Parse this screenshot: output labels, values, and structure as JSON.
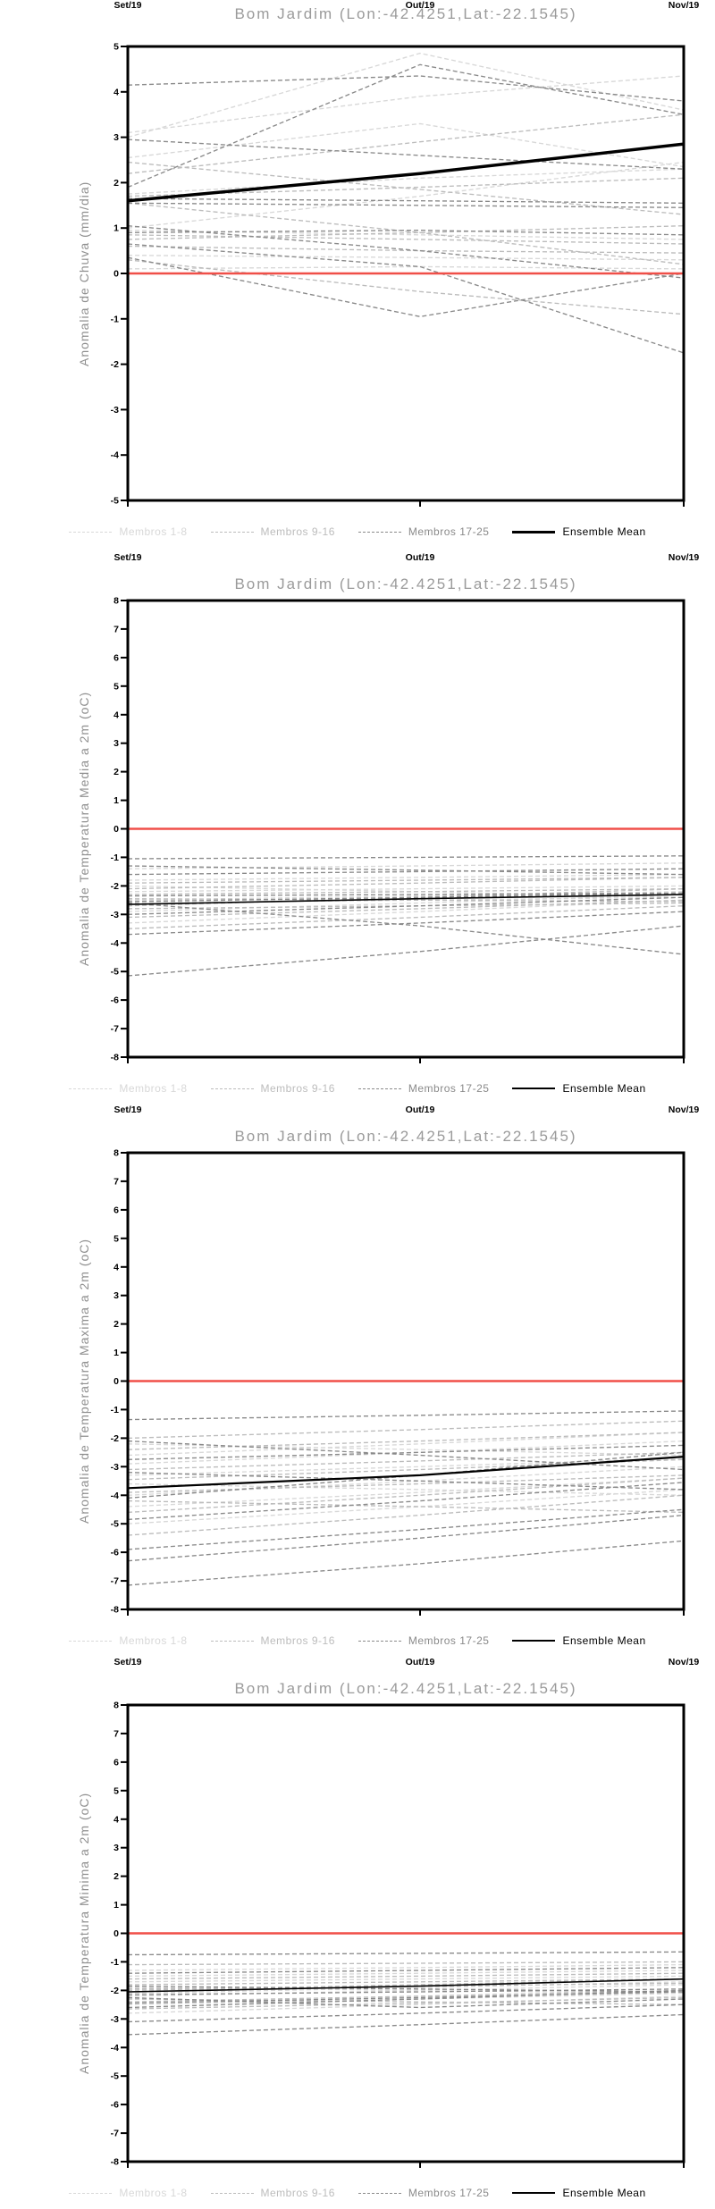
{
  "page": {
    "background": "#ffffff",
    "accent_zero_line_color": "#f04f48",
    "axis_color": "#000000",
    "title_color": "#9a9a9a"
  },
  "chart_data": [
    {
      "type": "line",
      "title": "Bom Jardim (Lon:-42.4251,Lat:-22.1545)",
      "ylabel": "Anomalia de Chuva (mm/dia)",
      "x_labels": [
        "Set/19",
        "Out/19",
        "Nov/19"
      ],
      "ylim": [
        -5,
        5
      ],
      "ytick_step": 1,
      "grid": false,
      "legend_position": "bottom",
      "zero_line_color": "#f04f48",
      "series_groups": [
        {
          "name": "Membros 1-8",
          "color": "#d8d8d8",
          "style": "dashed",
          "members": [
            [
              3.0,
              4.85,
              3.6
            ],
            [
              2.55,
              3.3,
              2.35
            ],
            [
              1.75,
              2.1,
              2.3
            ],
            [
              0.95,
              0.85,
              0.75
            ],
            [
              0.4,
              0.35,
              0.3
            ],
            [
              0.1,
              0.15,
              0.1
            ],
            [
              1.0,
              1.7,
              2.45
            ],
            [
              3.1,
              3.9,
              4.35
            ]
          ]
        },
        {
          "name": "Membros 9-16",
          "color": "#bcbcbc",
          "style": "dashed",
          "members": [
            [
              2.2,
              2.9,
              3.5
            ],
            [
              1.55,
              0.9,
              0.2
            ],
            [
              0.85,
              0.75,
              0.65
            ],
            [
              0.6,
              0.5,
              0.45
            ],
            [
              1.7,
              1.9,
              2.1
            ],
            [
              0.3,
              -0.4,
              -0.9
            ],
            [
              2.45,
              1.85,
              1.3
            ],
            [
              0.75,
              0.9,
              1.05
            ]
          ]
        },
        {
          "name": "Membros 17-25",
          "color": "#8a8a8a",
          "style": "dashed",
          "members": [
            [
              4.15,
              4.35,
              3.8
            ],
            [
              1.9,
              4.6,
              3.5
            ],
            [
              2.95,
              2.6,
              2.3
            ],
            [
              1.65,
              1.6,
              1.55
            ],
            [
              1.55,
              1.5,
              1.45
            ],
            [
              0.9,
              0.95,
              0.85
            ],
            [
              0.35,
              -0.95,
              0.0
            ],
            [
              0.65,
              0.15,
              -1.75
            ],
            [
              1.05,
              0.5,
              -0.1
            ]
          ]
        }
      ],
      "ensemble_mean": {
        "name": "Ensemble Mean",
        "color": "#000000",
        "width": 3.5,
        "values": [
          1.6,
          2.2,
          2.85
        ]
      }
    },
    {
      "type": "line",
      "title": "Bom Jardim (Lon:-42.4251,Lat:-22.1545)",
      "ylabel": "Anomalia de Temperatura Media a 2m (oC)",
      "x_labels": [
        "Set/19",
        "Out/19",
        "Nov/19"
      ],
      "ylim": [
        -8,
        8
      ],
      "ytick_step": 1,
      "grid": false,
      "legend_position": "bottom",
      "zero_line_color": "#f04f48",
      "series_groups": [
        {
          "name": "Membros 1-8",
          "color": "#d8d8d8",
          "style": "dashed",
          "members": [
            [
              -2.2,
              -2.1,
              -2.0
            ],
            [
              -2.5,
              -2.35,
              -2.2
            ],
            [
              -2.9,
              -2.6,
              -2.3
            ],
            [
              -1.8,
              -1.7,
              -1.6
            ],
            [
              -3.3,
              -2.9,
              -2.5
            ],
            [
              -2.0,
              -2.2,
              -2.4
            ],
            [
              -2.6,
              -2.5,
              -2.4
            ],
            [
              -1.4,
              -1.3,
              -1.2
            ]
          ]
        },
        {
          "name": "Membros 9-16",
          "color": "#bcbcbc",
          "style": "dashed",
          "members": [
            [
              -2.3,
              -2.2,
              -2.1
            ],
            [
              -2.7,
              -2.4,
              -2.1
            ],
            [
              -3.1,
              -2.8,
              -2.5
            ],
            [
              -1.9,
              -1.8,
              -1.7
            ],
            [
              -2.45,
              -2.5,
              -2.55
            ],
            [
              -3.5,
              -3.1,
              -2.7
            ],
            [
              -2.1,
              -1.9,
              -1.7
            ],
            [
              -2.8,
              -2.7,
              -2.6
            ]
          ]
        },
        {
          "name": "Membros 17-25",
          "color": "#8a8a8a",
          "style": "dashed",
          "members": [
            [
              -5.15,
              -4.3,
              -3.4
            ],
            [
              -1.05,
              -1.0,
              -0.95
            ],
            [
              -2.35,
              -2.3,
              -2.25
            ],
            [
              -2.55,
              -2.4,
              -2.25
            ],
            [
              -3.0,
              -2.7,
              -2.4
            ],
            [
              -1.6,
              -1.5,
              -1.4
            ],
            [
              -2.6,
              -3.4,
              -4.4
            ],
            [
              -1.3,
              -1.45,
              -1.6
            ],
            [
              -3.7,
              -3.3,
              -2.9
            ]
          ]
        }
      ],
      "ensemble_mean": {
        "name": "Ensemble Mean",
        "color": "#000000",
        "width": 1.6,
        "values": [
          -2.65,
          -2.45,
          -2.3
        ]
      }
    },
    {
      "type": "line",
      "title": "Bom Jardim (Lon:-42.4251,Lat:-22.1545)",
      "ylabel": "Anomalia de Temperatura Maxima a 2m (oC)",
      "x_labels": [
        "Set/19",
        "Out/19",
        "Nov/19"
      ],
      "ylim": [
        -8,
        8
      ],
      "ytick_step": 1,
      "grid": false,
      "legend_position": "bottom",
      "zero_line_color": "#f04f48",
      "series_groups": [
        {
          "name": "Membros 1-8",
          "color": "#d8d8d8",
          "style": "dashed",
          "members": [
            [
              -4.4,
              -3.9,
              -3.4
            ],
            [
              -2.9,
              -2.5,
              -2.1
            ],
            [
              -5.0,
              -4.4,
              -3.8
            ],
            [
              -3.3,
              -3.0,
              -2.7
            ],
            [
              -2.2,
              -2.4,
              -2.6
            ],
            [
              -4.0,
              -3.5,
              -3.0
            ],
            [
              -3.6,
              -3.8,
              -4.0
            ],
            [
              -2.6,
              -2.2,
              -1.8
            ]
          ]
        },
        {
          "name": "Membros 9-16",
          "color": "#bcbcbc",
          "style": "dashed",
          "members": [
            [
              -3.1,
              -2.8,
              -2.5
            ],
            [
              -4.6,
              -4.0,
              -3.4
            ],
            [
              -2.4,
              -2.1,
              -1.8
            ],
            [
              -5.4,
              -4.7,
              -4.0
            ],
            [
              -3.9,
              -3.6,
              -3.3
            ],
            [
              -2.0,
              -1.7,
              -1.4
            ],
            [
              -4.2,
              -4.4,
              -4.6
            ],
            [
              -3.45,
              -3.1,
              -2.75
            ]
          ]
        },
        {
          "name": "Membros 17-25",
          "color": "#8a8a8a",
          "style": "dashed",
          "members": [
            [
              -7.15,
              -6.4,
              -5.6
            ],
            [
              -1.35,
              -1.2,
              -1.05
            ],
            [
              -2.75,
              -2.5,
              -2.25
            ],
            [
              -4.85,
              -4.2,
              -3.55
            ],
            [
              -3.2,
              -3.5,
              -3.8
            ],
            [
              -6.3,
              -5.5,
              -4.7
            ],
            [
              -2.1,
              -2.6,
              -3.1
            ],
            [
              -4.1,
              -3.3,
              -2.5
            ],
            [
              -5.9,
              -5.2,
              -4.5
            ]
          ]
        }
      ],
      "ensemble_mean": {
        "name": "Ensemble Mean",
        "color": "#000000",
        "width": 2.2,
        "values": [
          -3.75,
          -3.3,
          -2.65
        ]
      }
    },
    {
      "type": "line",
      "title": "Bom Jardim (Lon:-42.4251,Lat:-22.1545)",
      "ylabel": "Anomalia de Temperatura Minima a 2m (oC)",
      "x_labels": [
        "Set/19",
        "Out/19",
        "Nov/19"
      ],
      "ylim": [
        -8,
        8
      ],
      "ytick_step": 1,
      "grid": false,
      "legend_position": "bottom",
      "zero_line_color": "#f04f48",
      "series_groups": [
        {
          "name": "Membros 1-8",
          "color": "#d8d8d8",
          "style": "dashed",
          "members": [
            [
              -1.7,
              -1.6,
              -1.5
            ],
            [
              -2.2,
              -2.0,
              -1.8
            ],
            [
              -1.3,
              -1.2,
              -1.1
            ],
            [
              -2.5,
              -2.3,
              -2.1
            ],
            [
              -1.9,
              -2.0,
              -2.1
            ],
            [
              -2.8,
              -2.5,
              -2.2
            ],
            [
              -1.5,
              -1.4,
              -1.3
            ],
            [
              -2.1,
              -1.9,
              -1.7
            ]
          ]
        },
        {
          "name": "Membros 9-16",
          "color": "#bcbcbc",
          "style": "dashed",
          "members": [
            [
              -1.8,
              -1.7,
              -1.6
            ],
            [
              -2.4,
              -2.2,
              -2.0
            ],
            [
              -1.1,
              -1.05,
              -1.0
            ],
            [
              -2.65,
              -2.45,
              -2.25
            ],
            [
              -1.95,
              -1.85,
              -1.75
            ],
            [
              -2.3,
              -2.4,
              -2.5
            ],
            [
              -1.6,
              -1.5,
              -1.4
            ],
            [
              -2.0,
              -1.8,
              -1.6
            ]
          ]
        },
        {
          "name": "Membros 17-25",
          "color": "#8a8a8a",
          "style": "dashed",
          "members": [
            [
              -3.55,
              -3.2,
              -2.85
            ],
            [
              -0.75,
              -0.7,
              -0.65
            ],
            [
              -2.15,
              -2.05,
              -1.95
            ],
            [
              -2.45,
              -2.25,
              -2.05
            ],
            [
              -1.85,
              -1.95,
              -2.05
            ],
            [
              -3.1,
              -2.8,
              -2.5
            ],
            [
              -1.4,
              -1.3,
              -1.2
            ],
            [
              -2.6,
              -2.3,
              -2.0
            ],
            [
              -2.25,
              -2.6,
              -2.3
            ]
          ]
        }
      ],
      "ensemble_mean": {
        "name": "Ensemble Mean",
        "color": "#000000",
        "width": 1.6,
        "values": [
          -2.05,
          -1.85,
          -1.6
        ]
      }
    }
  ]
}
